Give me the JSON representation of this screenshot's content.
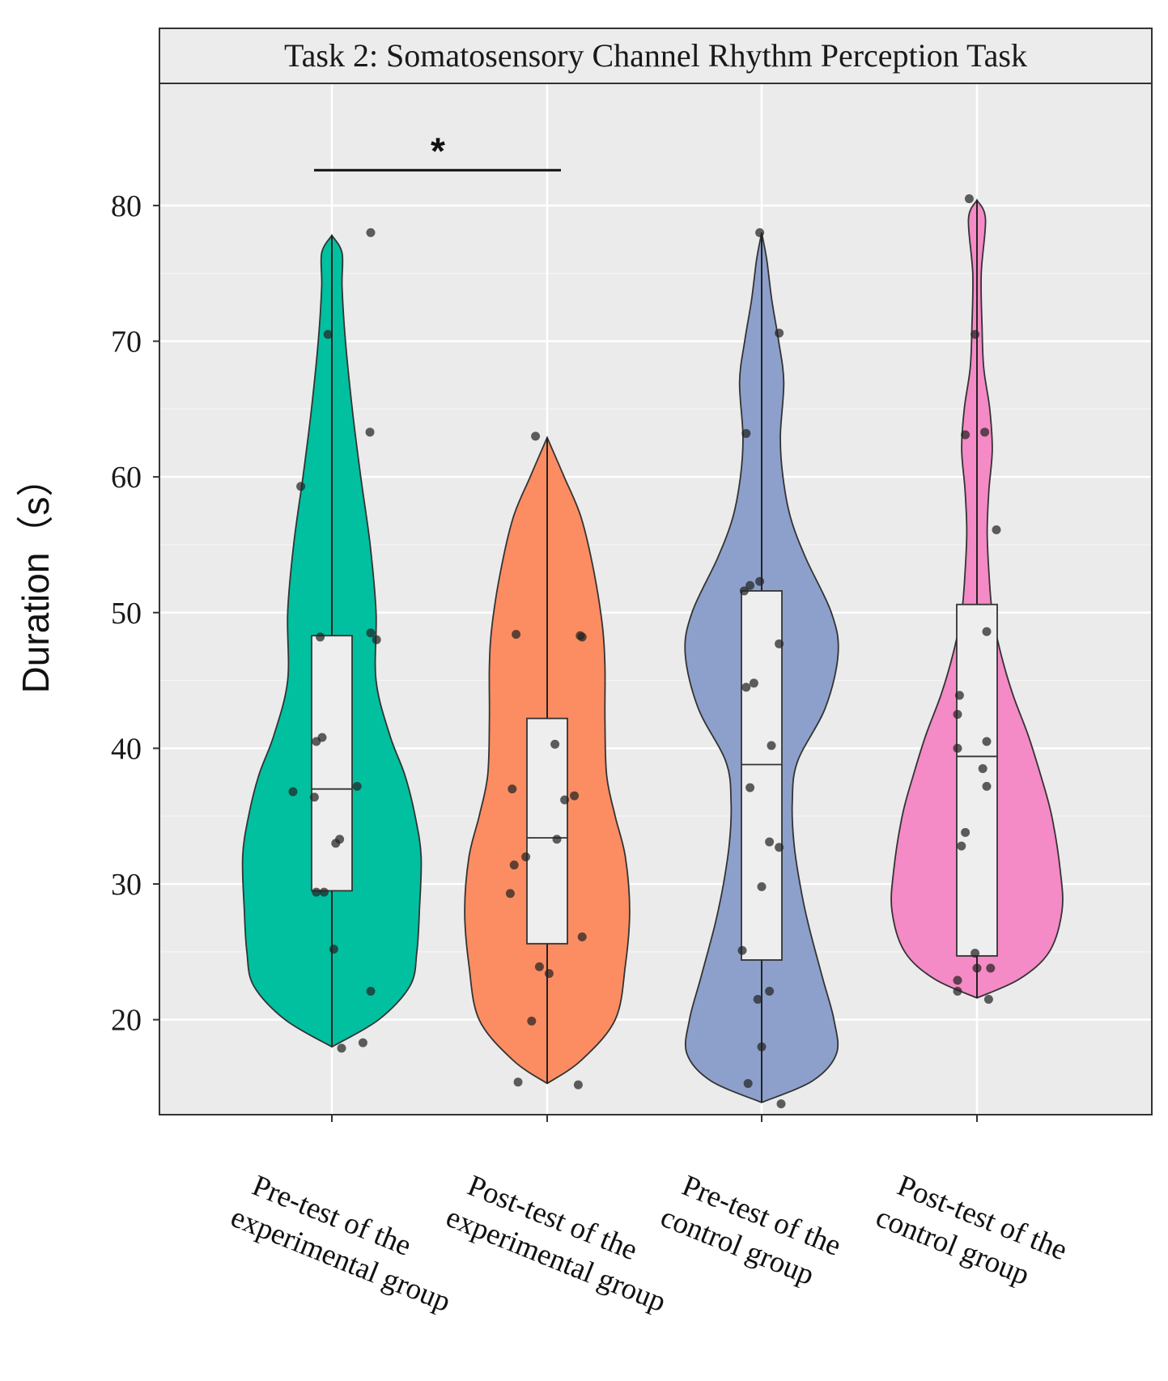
{
  "chart_data": {
    "type": "violin",
    "title": "Task 2: Somatosensory Channel Rhythm Perception Task",
    "ylabel": "Duration（s）",
    "ylim": [
      13,
      89
    ],
    "yticks": [
      20,
      30,
      40,
      50,
      60,
      70,
      80
    ],
    "grid": true,
    "legend": "none",
    "categories": [
      {
        "lines": [
          "Pre-test of the",
          "experimental group"
        ]
      },
      {
        "lines": [
          "Post-test of the",
          "experimental group"
        ]
      },
      {
        "lines": [
          "Pre-test of the",
          "control group"
        ]
      },
      {
        "lines": [
          "Post-test of the",
          "control group"
        ]
      }
    ],
    "significance": [
      {
        "from": 0,
        "to": 1,
        "label": "*",
        "y": 82.6
      }
    ],
    "series": [
      {
        "color": "#00c0a0",
        "min": 18.0,
        "max": 77.8,
        "box": {
          "q1": 29.5,
          "median": 37.0,
          "q3": 48.3
        },
        "density": [
          [
            18.0,
            0
          ],
          [
            20,
            55
          ],
          [
            22.5,
            92
          ],
          [
            25,
            100
          ],
          [
            28,
            103
          ],
          [
            32,
            105
          ],
          [
            35,
            98
          ],
          [
            38,
            86
          ],
          [
            41,
            68
          ],
          [
            45,
            52
          ],
          [
            50,
            52
          ],
          [
            55,
            45
          ],
          [
            60,
            34
          ],
          [
            65,
            24
          ],
          [
            70,
            16
          ],
          [
            74,
            12
          ],
          [
            76.5,
            12
          ],
          [
            77.8,
            0
          ]
        ],
        "points": [
          [
            1.0,
            78.0
          ],
          [
            -0.1,
            70.5
          ],
          [
            0.98,
            63.3
          ],
          [
            -0.8,
            59.3
          ],
          [
            -0.3,
            48.2
          ],
          [
            1.0,
            48.5
          ],
          [
            1.15,
            48.0
          ],
          [
            -0.4,
            40.5
          ],
          [
            -0.25,
            40.8
          ],
          [
            -1.0,
            36.8
          ],
          [
            -0.45,
            36.4
          ],
          [
            0.65,
            37.2
          ],
          [
            0.1,
            33.0
          ],
          [
            0.2,
            33.3
          ],
          [
            -0.2,
            29.4
          ],
          [
            -0.4,
            29.4
          ],
          [
            0.05,
            25.2
          ],
          [
            1.0,
            22.1
          ],
          [
            0.8,
            18.3
          ],
          [
            0.25,
            17.9
          ]
        ]
      },
      {
        "color": "#fc8d62",
        "min": 15.3,
        "max": 62.9,
        "box": {
          "q1": 25.6,
          "median": 33.4,
          "q3": 42.2
        },
        "density": [
          [
            15.3,
            0
          ],
          [
            17,
            40
          ],
          [
            20,
            80
          ],
          [
            24,
            92
          ],
          [
            28,
            97
          ],
          [
            32,
            92
          ],
          [
            35,
            80
          ],
          [
            38,
            70
          ],
          [
            42,
            68
          ],
          [
            46,
            68
          ],
          [
            49,
            65
          ],
          [
            53,
            55
          ],
          [
            57,
            40
          ],
          [
            60,
            20
          ],
          [
            62.9,
            0
          ]
        ],
        "points": [
          [
            -0.3,
            63.0
          ],
          [
            -0.8,
            48.4
          ],
          [
            0.85,
            48.3
          ],
          [
            0.9,
            48.2
          ],
          [
            0.2,
            40.3
          ],
          [
            -0.9,
            37.0
          ],
          [
            0.45,
            36.2
          ],
          [
            0.7,
            36.5
          ],
          [
            0.25,
            33.3
          ],
          [
            -0.55,
            32.0
          ],
          [
            -0.85,
            31.4
          ],
          [
            -0.95,
            29.3
          ],
          [
            0.9,
            26.1
          ],
          [
            -0.2,
            23.9
          ],
          [
            0.05,
            23.4
          ],
          [
            -0.4,
            19.9
          ],
          [
            -0.75,
            15.4
          ],
          [
            0.8,
            15.2
          ]
        ]
      },
      {
        "color": "#8da0cb",
        "min": 13.9,
        "max": 78.0,
        "box": {
          "q1": 24.4,
          "median": 38.8,
          "q3": 51.6
        },
        "density": [
          [
            13.9,
            0
          ],
          [
            15.5,
            60
          ],
          [
            17.5,
            88
          ],
          [
            20,
            85
          ],
          [
            23,
            72
          ],
          [
            27,
            55
          ],
          [
            30,
            45
          ],
          [
            33,
            38
          ],
          [
            36,
            36
          ],
          [
            39,
            42
          ],
          [
            43,
            75
          ],
          [
            47,
            90
          ],
          [
            50,
            82
          ],
          [
            54,
            52
          ],
          [
            57,
            34
          ],
          [
            60,
            25
          ],
          [
            63,
            22
          ],
          [
            67,
            26
          ],
          [
            70,
            20
          ],
          [
            73,
            12
          ],
          [
            76,
            6
          ],
          [
            78.0,
            0
          ]
        ],
        "points": [
          [
            -0.05,
            78.0
          ],
          [
            0.45,
            70.6
          ],
          [
            -0.4,
            63.2
          ],
          [
            -0.45,
            51.6
          ],
          [
            -0.3,
            52.0
          ],
          [
            -0.05,
            52.3
          ],
          [
            0.45,
            47.7
          ],
          [
            -0.4,
            44.5
          ],
          [
            -0.2,
            44.8
          ],
          [
            -0.3,
            37.1
          ],
          [
            0.25,
            40.2
          ],
          [
            0.2,
            33.1
          ],
          [
            0.45,
            32.7
          ],
          [
            0.0,
            29.8
          ],
          [
            -0.5,
            25.1
          ],
          [
            -0.1,
            21.5
          ],
          [
            0.2,
            22.1
          ],
          [
            0.0,
            18.0
          ],
          [
            -0.35,
            15.3
          ],
          [
            0.5,
            13.8
          ]
        ]
      },
      {
        "color": "#f48ac6",
        "min": 21.6,
        "max": 80.4,
        "box": {
          "q1": 24.7,
          "median": 39.4,
          "q3": 50.6
        },
        "density": [
          [
            21.6,
            0
          ],
          [
            23,
            50
          ],
          [
            25,
            85
          ],
          [
            28,
            100
          ],
          [
            31,
            98
          ],
          [
            35,
            88
          ],
          [
            38,
            75
          ],
          [
            41,
            60
          ],
          [
            44,
            42
          ],
          [
            47,
            28
          ],
          [
            50,
            18
          ],
          [
            53,
            14
          ],
          [
            56,
            12
          ],
          [
            59,
            14
          ],
          [
            62,
            18
          ],
          [
            65,
            15
          ],
          [
            68,
            8
          ],
          [
            71,
            6
          ],
          [
            75,
            5
          ],
          [
            79,
            10
          ],
          [
            80.4,
            0
          ]
        ],
        "points": [
          [
            -0.2,
            80.5
          ],
          [
            -0.05,
            70.5
          ],
          [
            -0.3,
            63.1
          ],
          [
            0.2,
            63.3
          ],
          [
            0.5,
            56.1
          ],
          [
            0.25,
            48.6
          ],
          [
            -0.45,
            43.9
          ],
          [
            -0.5,
            42.5
          ],
          [
            -0.5,
            40.0
          ],
          [
            0.25,
            40.5
          ],
          [
            0.15,
            38.5
          ],
          [
            0.25,
            37.2
          ],
          [
            -0.3,
            33.8
          ],
          [
            -0.4,
            32.8
          ],
          [
            -0.05,
            24.9
          ],
          [
            0.0,
            23.8
          ],
          [
            0.35,
            23.8
          ],
          [
            -0.5,
            22.9
          ],
          [
            -0.5,
            22.1
          ],
          [
            0.3,
            21.5
          ]
        ]
      }
    ]
  }
}
